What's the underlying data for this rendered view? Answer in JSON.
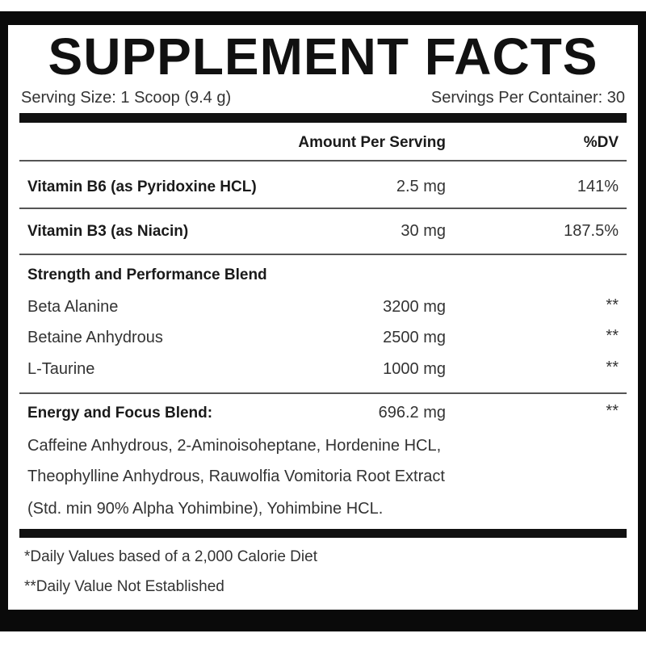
{
  "title": "SUPPLEMENT FACTS",
  "serving_size": "Serving Size: 1 Scoop (9.4 g)",
  "servings_per_container": "Servings Per Container: 30",
  "header": {
    "amount": "Amount Per Serving",
    "dv": "%DV"
  },
  "vitamins": [
    {
      "name": "Vitamin B6 (as Pyridoxine HCL)",
      "amount": "2.5 mg",
      "dv": "141%"
    },
    {
      "name": "Vitamin B3 (as Niacin)",
      "amount": "30 mg",
      "dv": "187.5%"
    }
  ],
  "strength_blend": {
    "title": "Strength and Performance Blend",
    "items": [
      {
        "name": "Beta Alanine",
        "amount": "3200 mg",
        "dv": "**"
      },
      {
        "name": "Betaine Anhydrous",
        "amount": "2500 mg",
        "dv": "**"
      },
      {
        "name": "L-Taurine",
        "amount": "1000 mg",
        "dv": "**"
      }
    ]
  },
  "energy_blend": {
    "title": "Energy and Focus Blend:",
    "amount": "696.2 mg",
    "dv": "**",
    "ingredients": [
      "Caffeine Anhydrous, 2-Aminoisoheptane, Hordenine HCL,",
      "Theophylline Anhydrous, Rauwolfia Vomitoria Root Extract",
      "(Std. min 90% Alpha Yohimbine), Yohimbine HCL."
    ]
  },
  "footnotes": [
    "*Daily Values based of a 2,000 Calorie Diet",
    "**Daily Value Not Established"
  ]
}
